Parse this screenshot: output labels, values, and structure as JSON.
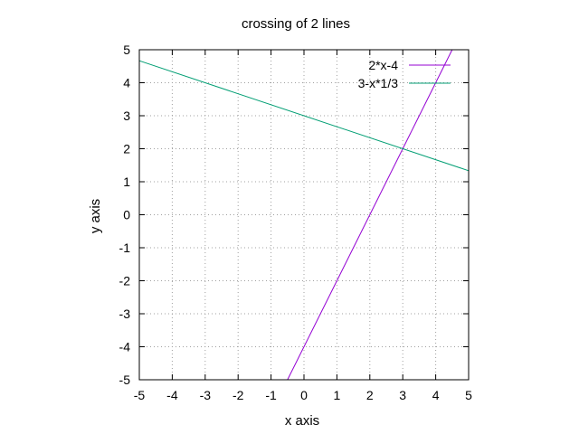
{
  "chart_data": {
    "type": "line",
    "title": "crossing of 2 lines",
    "xlabel": "x axis",
    "ylabel": "y axis",
    "xlim": [
      -5,
      5
    ],
    "ylim": [
      -5,
      5
    ],
    "xticks": [
      "-5",
      "-4",
      "-3",
      "-2",
      "-1",
      "0",
      "1",
      "2",
      "3",
      "4",
      "5"
    ],
    "yticks": [
      "-5",
      "-4",
      "-3",
      "-2",
      "-1",
      "0",
      "1",
      "2",
      "3",
      "4",
      "5"
    ],
    "grid": true,
    "legend_position": "top-right",
    "series": [
      {
        "name": "2*x-4",
        "color": "#9400d3",
        "x": [
          -0.5,
          4.5
        ],
        "y": [
          -5,
          5
        ]
      },
      {
        "name": "3-x*1/3",
        "color": "#009e73",
        "x": [
          -5,
          5
        ],
        "y": [
          4.667,
          1.333
        ]
      }
    ]
  }
}
